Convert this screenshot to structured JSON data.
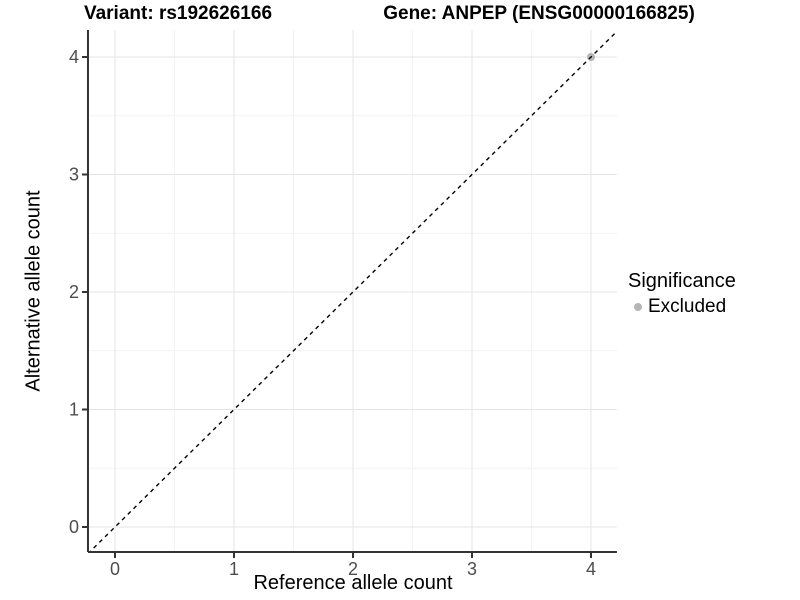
{
  "header": {
    "title_variant": "Variant: rs192626166",
    "title_gene": "Gene: ANPEP (ENSG00000166825)"
  },
  "chart_data": {
    "type": "scatter",
    "titles": [
      "Variant: rs192626166",
      "Gene: ANPEP (ENSG00000166825)"
    ],
    "xlabel": "Reference allele count",
    "ylabel": "Alternative allele count",
    "xlim": [
      -0.227,
      4.218
    ],
    "ylim": [
      -0.213,
      4.23
    ],
    "x_ticks": [
      0,
      1,
      2,
      3,
      4
    ],
    "y_ticks": [
      0,
      1,
      2,
      3,
      4
    ],
    "x_minor_ticks": [
      0.5,
      1.5,
      2.5,
      3.5
    ],
    "y_minor_ticks": [
      0.5,
      1.5,
      2.5,
      3.5
    ],
    "grid": "major+minor",
    "identity_line": {
      "slope": 1,
      "intercept": 0,
      "style": "dashed",
      "color": "#000000"
    },
    "series": [
      {
        "name": "Excluded",
        "color": "#b5b5b5",
        "points": [
          [
            4,
            4
          ]
        ]
      }
    ],
    "legend": {
      "title": "Significance",
      "position": "right",
      "entries": [
        {
          "label": "Excluded",
          "color": "#b5b5b5"
        }
      ]
    },
    "colors": {
      "major_grid": "#e5e5e5",
      "minor_grid": "#f2f2f2",
      "axis_line": "#333333",
      "tick_text": "#4d4d4d"
    }
  }
}
